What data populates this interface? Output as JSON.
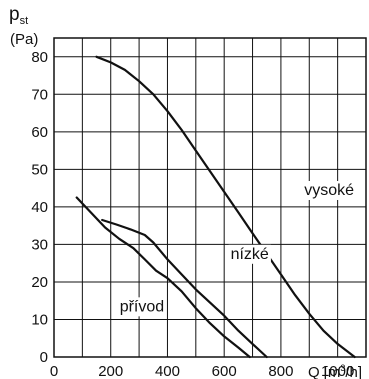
{
  "chart_data": {
    "type": "line",
    "ylabel": "p",
    "ylabel_sub": "st",
    "yunit": "(Pa)",
    "xlabel": "Q",
    "xunit_pre": "[m",
    "xunit_sup": "3",
    "xunit_post": "/h]",
    "xlim": [
      0,
      1100
    ],
    "ylim": [
      0,
      85
    ],
    "x_ticks": [
      0,
      200,
      400,
      600,
      800,
      1000
    ],
    "y_ticks": [
      0,
      10,
      20,
      30,
      40,
      50,
      60,
      70,
      80
    ],
    "grid": true,
    "series": [
      {
        "name": "vysoké",
        "label_at": [
          970,
          44.5
        ],
        "points": [
          [
            150,
            80
          ],
          [
            200,
            78.5
          ],
          [
            250,
            76.5
          ],
          [
            300,
            73.5
          ],
          [
            350,
            70
          ],
          [
            400,
            65.5
          ],
          [
            450,
            60.5
          ],
          [
            500,
            55
          ],
          [
            550,
            49.5
          ],
          [
            600,
            44
          ],
          [
            650,
            38.5
          ],
          [
            700,
            33
          ],
          [
            750,
            27.5
          ],
          [
            800,
            22
          ],
          [
            850,
            16.5
          ],
          [
            900,
            11.5
          ],
          [
            950,
            7
          ],
          [
            1000,
            3.5
          ],
          [
            1060,
            0
          ]
        ]
      },
      {
        "name": "nízké",
        "label_at": [
          690,
          27.5
        ],
        "points": [
          [
            170,
            36.5
          ],
          [
            220,
            35.3
          ],
          [
            270,
            34
          ],
          [
            320,
            32.5
          ],
          [
            350,
            30.5
          ],
          [
            400,
            26
          ],
          [
            450,
            22
          ],
          [
            500,
            18
          ],
          [
            550,
            14.5
          ],
          [
            600,
            11
          ],
          [
            650,
            7
          ],
          [
            700,
            3.5
          ],
          [
            750,
            0
          ]
        ]
      },
      {
        "name": "přívod",
        "label_at": [
          310,
          13.5
        ],
        "points": [
          [
            80,
            42.5
          ],
          [
            130,
            38.5
          ],
          [
            180,
            34.5
          ],
          [
            230,
            31.5
          ],
          [
            280,
            29
          ],
          [
            320,
            26
          ],
          [
            360,
            23
          ],
          [
            400,
            21
          ],
          [
            450,
            17.5
          ],
          [
            500,
            13
          ],
          [
            550,
            9
          ],
          [
            600,
            5.5
          ],
          [
            650,
            2.5
          ],
          [
            690,
            0
          ]
        ]
      }
    ]
  }
}
